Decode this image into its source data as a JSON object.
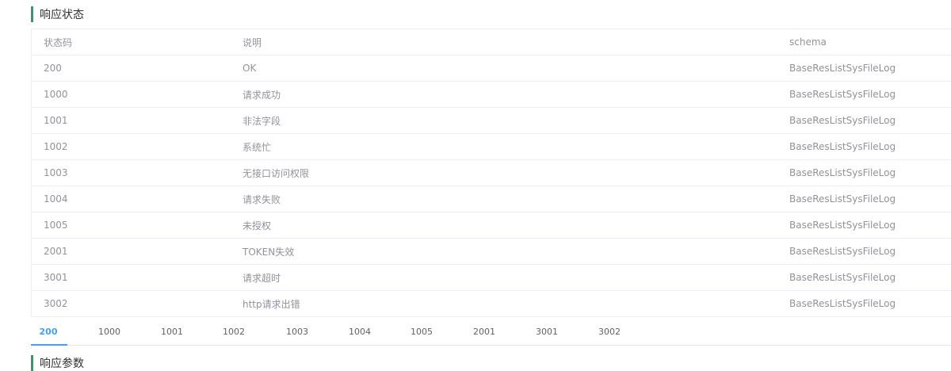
{
  "status_section": {
    "title": "响应状态"
  },
  "params_section": {
    "title": "响应参数"
  },
  "table": {
    "headers": [
      "状态码",
      "说明",
      "schema"
    ],
    "rows": [
      {
        "code": "200",
        "desc": "OK",
        "schema": "BaseResListSysFileLog"
      },
      {
        "code": "1000",
        "desc": "请求成功",
        "schema": "BaseResListSysFileLog"
      },
      {
        "code": "1001",
        "desc": "非法字段",
        "schema": "BaseResListSysFileLog"
      },
      {
        "code": "1002",
        "desc": "系统忙",
        "schema": "BaseResListSysFileLog"
      },
      {
        "code": "1003",
        "desc": "无接口访问权限",
        "schema": "BaseResListSysFileLog"
      },
      {
        "code": "1004",
        "desc": "请求失败",
        "schema": "BaseResListSysFileLog"
      },
      {
        "code": "1005",
        "desc": "未授权",
        "schema": "BaseResListSysFileLog"
      },
      {
        "code": "2001",
        "desc": "TOKEN失效",
        "schema": "BaseResListSysFileLog"
      },
      {
        "code": "3001",
        "desc": "请求超时",
        "schema": "BaseResListSysFileLog"
      },
      {
        "code": "3002",
        "desc": "http请求出错",
        "schema": "BaseResListSysFileLog"
      }
    ]
  },
  "tabs": {
    "items": [
      "200",
      "1000",
      "1001",
      "1002",
      "1003",
      "1004",
      "1005",
      "2001",
      "3001",
      "3002"
    ],
    "active": "200",
    "accent": "#409eff"
  }
}
